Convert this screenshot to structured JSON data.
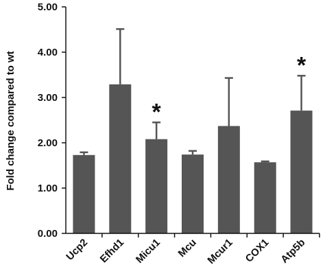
{
  "chart_data": {
    "type": "bar",
    "categories": [
      "Ucp2",
      "Efhd1",
      "Micu1",
      "Mcu",
      "Mcur1",
      "COX1",
      "Atp5b"
    ],
    "values": [
      1.73,
      3.29,
      2.08,
      1.74,
      2.37,
      1.57,
      2.71
    ],
    "error_upper": [
      1.79,
      4.51,
      2.45,
      1.82,
      3.43,
      1.59,
      3.48
    ],
    "significance": [
      "",
      "",
      "*",
      "",
      "",
      "",
      "*"
    ],
    "ylabel": "Fold change compared to wt",
    "xlabel": "",
    "ylim": [
      0,
      5
    ],
    "yticks": [
      "0.00",
      "1.00",
      "2.00",
      "3.00",
      "4.00",
      "5.00"
    ],
    "ytick_values": [
      0,
      1,
      2,
      3,
      4,
      5
    ],
    "grid": false,
    "colors": {
      "bar": "#555555",
      "axis": "#111111"
    }
  }
}
